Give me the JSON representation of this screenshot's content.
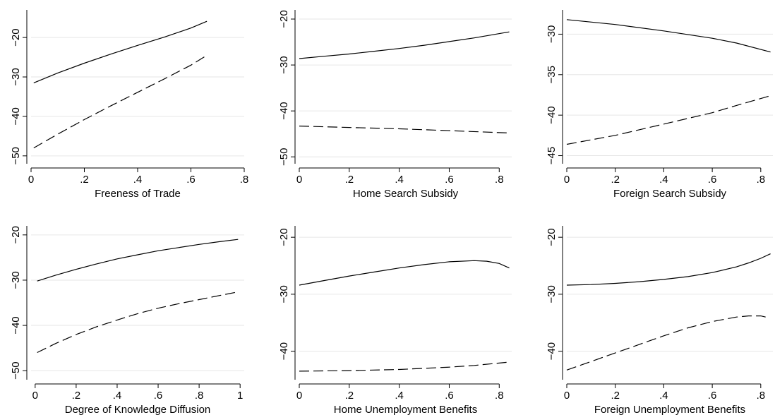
{
  "chart_data": [
    {
      "type": "line",
      "xlabel": "Freeness of Trade",
      "xlim": [
        0,
        0.8
      ],
      "ylim": [
        -52,
        -13
      ],
      "xticks": [
        0,
        0.2,
        0.4,
        0.6,
        0.8
      ],
      "xtick_labels": [
        "0",
        ".2",
        ".4",
        ".6",
        ".8"
      ],
      "yticks": [
        -50,
        -40,
        -30,
        -20
      ],
      "ytick_labels": [
        "−50",
        "−40",
        "−30",
        "−20"
      ],
      "grid": true,
      "series": [
        {
          "style": "solid",
          "x": [
            0.01,
            0.1,
            0.2,
            0.3,
            0.4,
            0.5,
            0.6,
            0.66
          ],
          "y": [
            -31.5,
            -29.0,
            -26.5,
            -24.2,
            -22.0,
            -19.9,
            -17.6,
            -15.9
          ]
        },
        {
          "style": "dashed",
          "x": [
            0.01,
            0.1,
            0.2,
            0.3,
            0.4,
            0.5,
            0.6,
            0.66
          ],
          "y": [
            -48.0,
            -44.5,
            -40.8,
            -37.3,
            -33.9,
            -30.5,
            -27.0,
            -24.5
          ]
        }
      ]
    },
    {
      "type": "line",
      "xlabel": "Home Search Subsidy",
      "xlim": [
        0,
        0.85
      ],
      "ylim": [
        -51.5,
        -18
      ],
      "xticks": [
        0,
        0.2,
        0.4,
        0.6,
        0.8
      ],
      "xtick_labels": [
        "0",
        ".2",
        ".4",
        ".6",
        ".8"
      ],
      "yticks": [
        -50,
        -40,
        -30,
        -20
      ],
      "ytick_labels": [
        "−50",
        "−40",
        "−30",
        "−20"
      ],
      "grid": true,
      "series": [
        {
          "style": "solid",
          "x": [
            0,
            0.1,
            0.2,
            0.3,
            0.4,
            0.5,
            0.6,
            0.7,
            0.84
          ],
          "y": [
            -28.6,
            -28.1,
            -27.6,
            -27.0,
            -26.4,
            -25.7,
            -24.9,
            -24.1,
            -22.8
          ]
        },
        {
          "style": "dashed",
          "x": [
            0,
            0.2,
            0.4,
            0.6,
            0.84
          ],
          "y": [
            -43.3,
            -43.6,
            -43.9,
            -44.3,
            -44.8
          ]
        }
      ]
    },
    {
      "type": "line",
      "xlabel": "Foreign Search Subsidy",
      "xlim": [
        0,
        0.85
      ],
      "ylim": [
        -46,
        -27
      ],
      "xticks": [
        0,
        0.2,
        0.4,
        0.6,
        0.8
      ],
      "xtick_labels": [
        "0",
        ".2",
        ".4",
        ".6",
        ".8"
      ],
      "yticks": [
        -45,
        -40,
        -35,
        -30
      ],
      "ytick_labels": [
        "−45",
        "−40",
        "−35",
        "−30"
      ],
      "grid": true,
      "series": [
        {
          "style": "solid",
          "x": [
            0,
            0.2,
            0.4,
            0.6,
            0.7,
            0.84
          ],
          "y": [
            -28.2,
            -28.8,
            -29.6,
            -30.5,
            -31.1,
            -32.2
          ]
        },
        {
          "style": "dashed",
          "x": [
            0,
            0.2,
            0.4,
            0.6,
            0.7,
            0.84
          ],
          "y": [
            -43.6,
            -42.5,
            -41.1,
            -39.7,
            -38.8,
            -37.6
          ]
        }
      ]
    },
    {
      "type": "line",
      "xlabel": "Degree of Knowledge Diffusion",
      "xlim": [
        -0.02,
        1.02
      ],
      "ylim": [
        -52,
        -18
      ],
      "xticks": [
        0,
        0.2,
        0.4,
        0.6,
        0.8,
        1
      ],
      "xtick_labels": [
        "0",
        ".2",
        ".4",
        ".6",
        ".8",
        "1"
      ],
      "yticks": [
        -50,
        -40,
        -30,
        -20
      ],
      "ytick_labels": [
        "−50",
        "−40",
        "−30",
        "−20"
      ],
      "grid": true,
      "series": [
        {
          "style": "solid",
          "x": [
            0.01,
            0.1,
            0.2,
            0.3,
            0.4,
            0.5,
            0.6,
            0.7,
            0.8,
            0.9,
            0.99
          ],
          "y": [
            -30.2,
            -28.9,
            -27.6,
            -26.4,
            -25.3,
            -24.4,
            -23.5,
            -22.8,
            -22.1,
            -21.5,
            -21.0
          ]
        },
        {
          "style": "dashed",
          "x": [
            0.01,
            0.1,
            0.2,
            0.3,
            0.4,
            0.5,
            0.6,
            0.7,
            0.8,
            0.9,
            0.99
          ],
          "y": [
            -46.0,
            -44.0,
            -42.0,
            -40.3,
            -38.8,
            -37.4,
            -36.2,
            -35.2,
            -34.3,
            -33.4,
            -32.6
          ]
        }
      ]
    },
    {
      "type": "line",
      "xlabel": "Home Unemployment Benefits",
      "xlim": [
        0,
        0.85
      ],
      "ylim": [
        -45,
        -18
      ],
      "xticks": [
        0,
        0.2,
        0.4,
        0.6,
        0.8
      ],
      "xtick_labels": [
        "0",
        ".2",
        ".4",
        ".6",
        ".8"
      ],
      "yticks": [
        -40,
        -30,
        -20
      ],
      "ytick_labels": [
        "−40",
        "−30",
        "−20"
      ],
      "grid": true,
      "series": [
        {
          "style": "solid",
          "x": [
            0,
            0.1,
            0.2,
            0.3,
            0.4,
            0.5,
            0.6,
            0.7,
            0.75,
            0.8,
            0.84
          ],
          "y": [
            -28.4,
            -27.6,
            -26.8,
            -26.1,
            -25.4,
            -24.8,
            -24.3,
            -24.1,
            -24.2,
            -24.6,
            -25.4
          ]
        },
        {
          "style": "dashed",
          "x": [
            0,
            0.2,
            0.4,
            0.6,
            0.7,
            0.84
          ],
          "y": [
            -43.5,
            -43.4,
            -43.2,
            -42.8,
            -42.5,
            -41.9
          ]
        }
      ]
    },
    {
      "type": "line",
      "xlabel": "Foreign Unemployment Benefits",
      "xlim": [
        0,
        0.85
      ],
      "ylim": [
        -45,
        -18
      ],
      "xticks": [
        0,
        0.2,
        0.4,
        0.6,
        0.8
      ],
      "xtick_labels": [
        "0",
        ".2",
        ".4",
        ".6",
        ".8"
      ],
      "yticks": [
        -40,
        -30,
        -20
      ],
      "ytick_labels": [
        "−40",
        "−30",
        "−20"
      ],
      "grid": true,
      "series": [
        {
          "style": "solid",
          "x": [
            0,
            0.1,
            0.2,
            0.3,
            0.4,
            0.5,
            0.6,
            0.7,
            0.75,
            0.8,
            0.84
          ],
          "y": [
            -28.4,
            -28.3,
            -28.1,
            -27.8,
            -27.4,
            -26.9,
            -26.2,
            -25.2,
            -24.5,
            -23.7,
            -22.9
          ]
        },
        {
          "style": "dashed",
          "x": [
            0,
            0.1,
            0.2,
            0.3,
            0.4,
            0.5,
            0.6,
            0.7,
            0.75,
            0.8,
            0.82
          ],
          "y": [
            -43.3,
            -41.8,
            -40.3,
            -38.8,
            -37.3,
            -35.9,
            -34.8,
            -34.0,
            -33.8,
            -33.8,
            -34.0
          ]
        }
      ]
    }
  ]
}
